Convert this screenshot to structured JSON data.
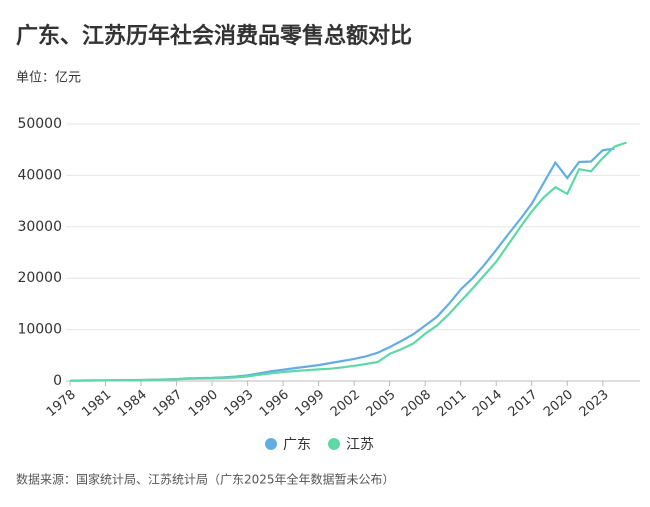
{
  "chart_data": {
    "type": "line",
    "title": "广东、江苏历年社会消费品零售总额对比",
    "subtitle": "单位：亿元",
    "source": "数据来源：国家统计局、江苏统计局（广东2025年全年数据暂未公布）",
    "categories": [
      "1978",
      null,
      null,
      "1981",
      null,
      null,
      "1984",
      null,
      null,
      "1987",
      null,
      null,
      "1990",
      null,
      null,
      "1993",
      null,
      null,
      "1996",
      null,
      null,
      "1999",
      null,
      null,
      "2002",
      null,
      null,
      "2005",
      null,
      null,
      "2008",
      null,
      null,
      "2011",
      null,
      null,
      "2014",
      null,
      null,
      "2017",
      null,
      null,
      "2020",
      null,
      null,
      "2023",
      null,
      null
    ],
    "series": [
      {
        "name": "广东",
        "color": "#62aee3",
        "values": [
          80,
          95,
          115,
          135,
          150,
          170,
          200,
          260,
          300,
          370,
          500,
          560,
          600,
          700,
          850,
          1100,
          1500,
          1900,
          2200,
          2500,
          2800,
          3100,
          3500,
          3900,
          4300,
          4800,
          5500,
          6600,
          7800,
          9100,
          10800,
          12500,
          15000,
          17800,
          20000,
          22600,
          25500,
          28500,
          31400,
          34500,
          38500,
          42500,
          39500,
          42600,
          42700,
          44900,
          45200,
          null
        ]
      },
      {
        "name": "江苏",
        "color": "#5ed8a6",
        "values": [
          70,
          80,
          95,
          110,
          125,
          150,
          180,
          230,
          270,
          330,
          430,
          480,
          500,
          580,
          700,
          900,
          1200,
          1500,
          1750,
          1950,
          2100,
          2250,
          2400,
          2650,
          2950,
          3300,
          3700,
          5300,
          6200,
          7300,
          9200,
          10800,
          13000,
          15500,
          18000,
          20600,
          23200,
          26500,
          29800,
          33000,
          35700,
          37700,
          36400,
          41200,
          40800,
          43400,
          45600,
          46400
        ]
      }
    ],
    "ylim": [
      0,
      50000
    ],
    "yticks": [
      0,
      10000,
      20000,
      30000,
      40000,
      50000
    ],
    "grid": true
  }
}
